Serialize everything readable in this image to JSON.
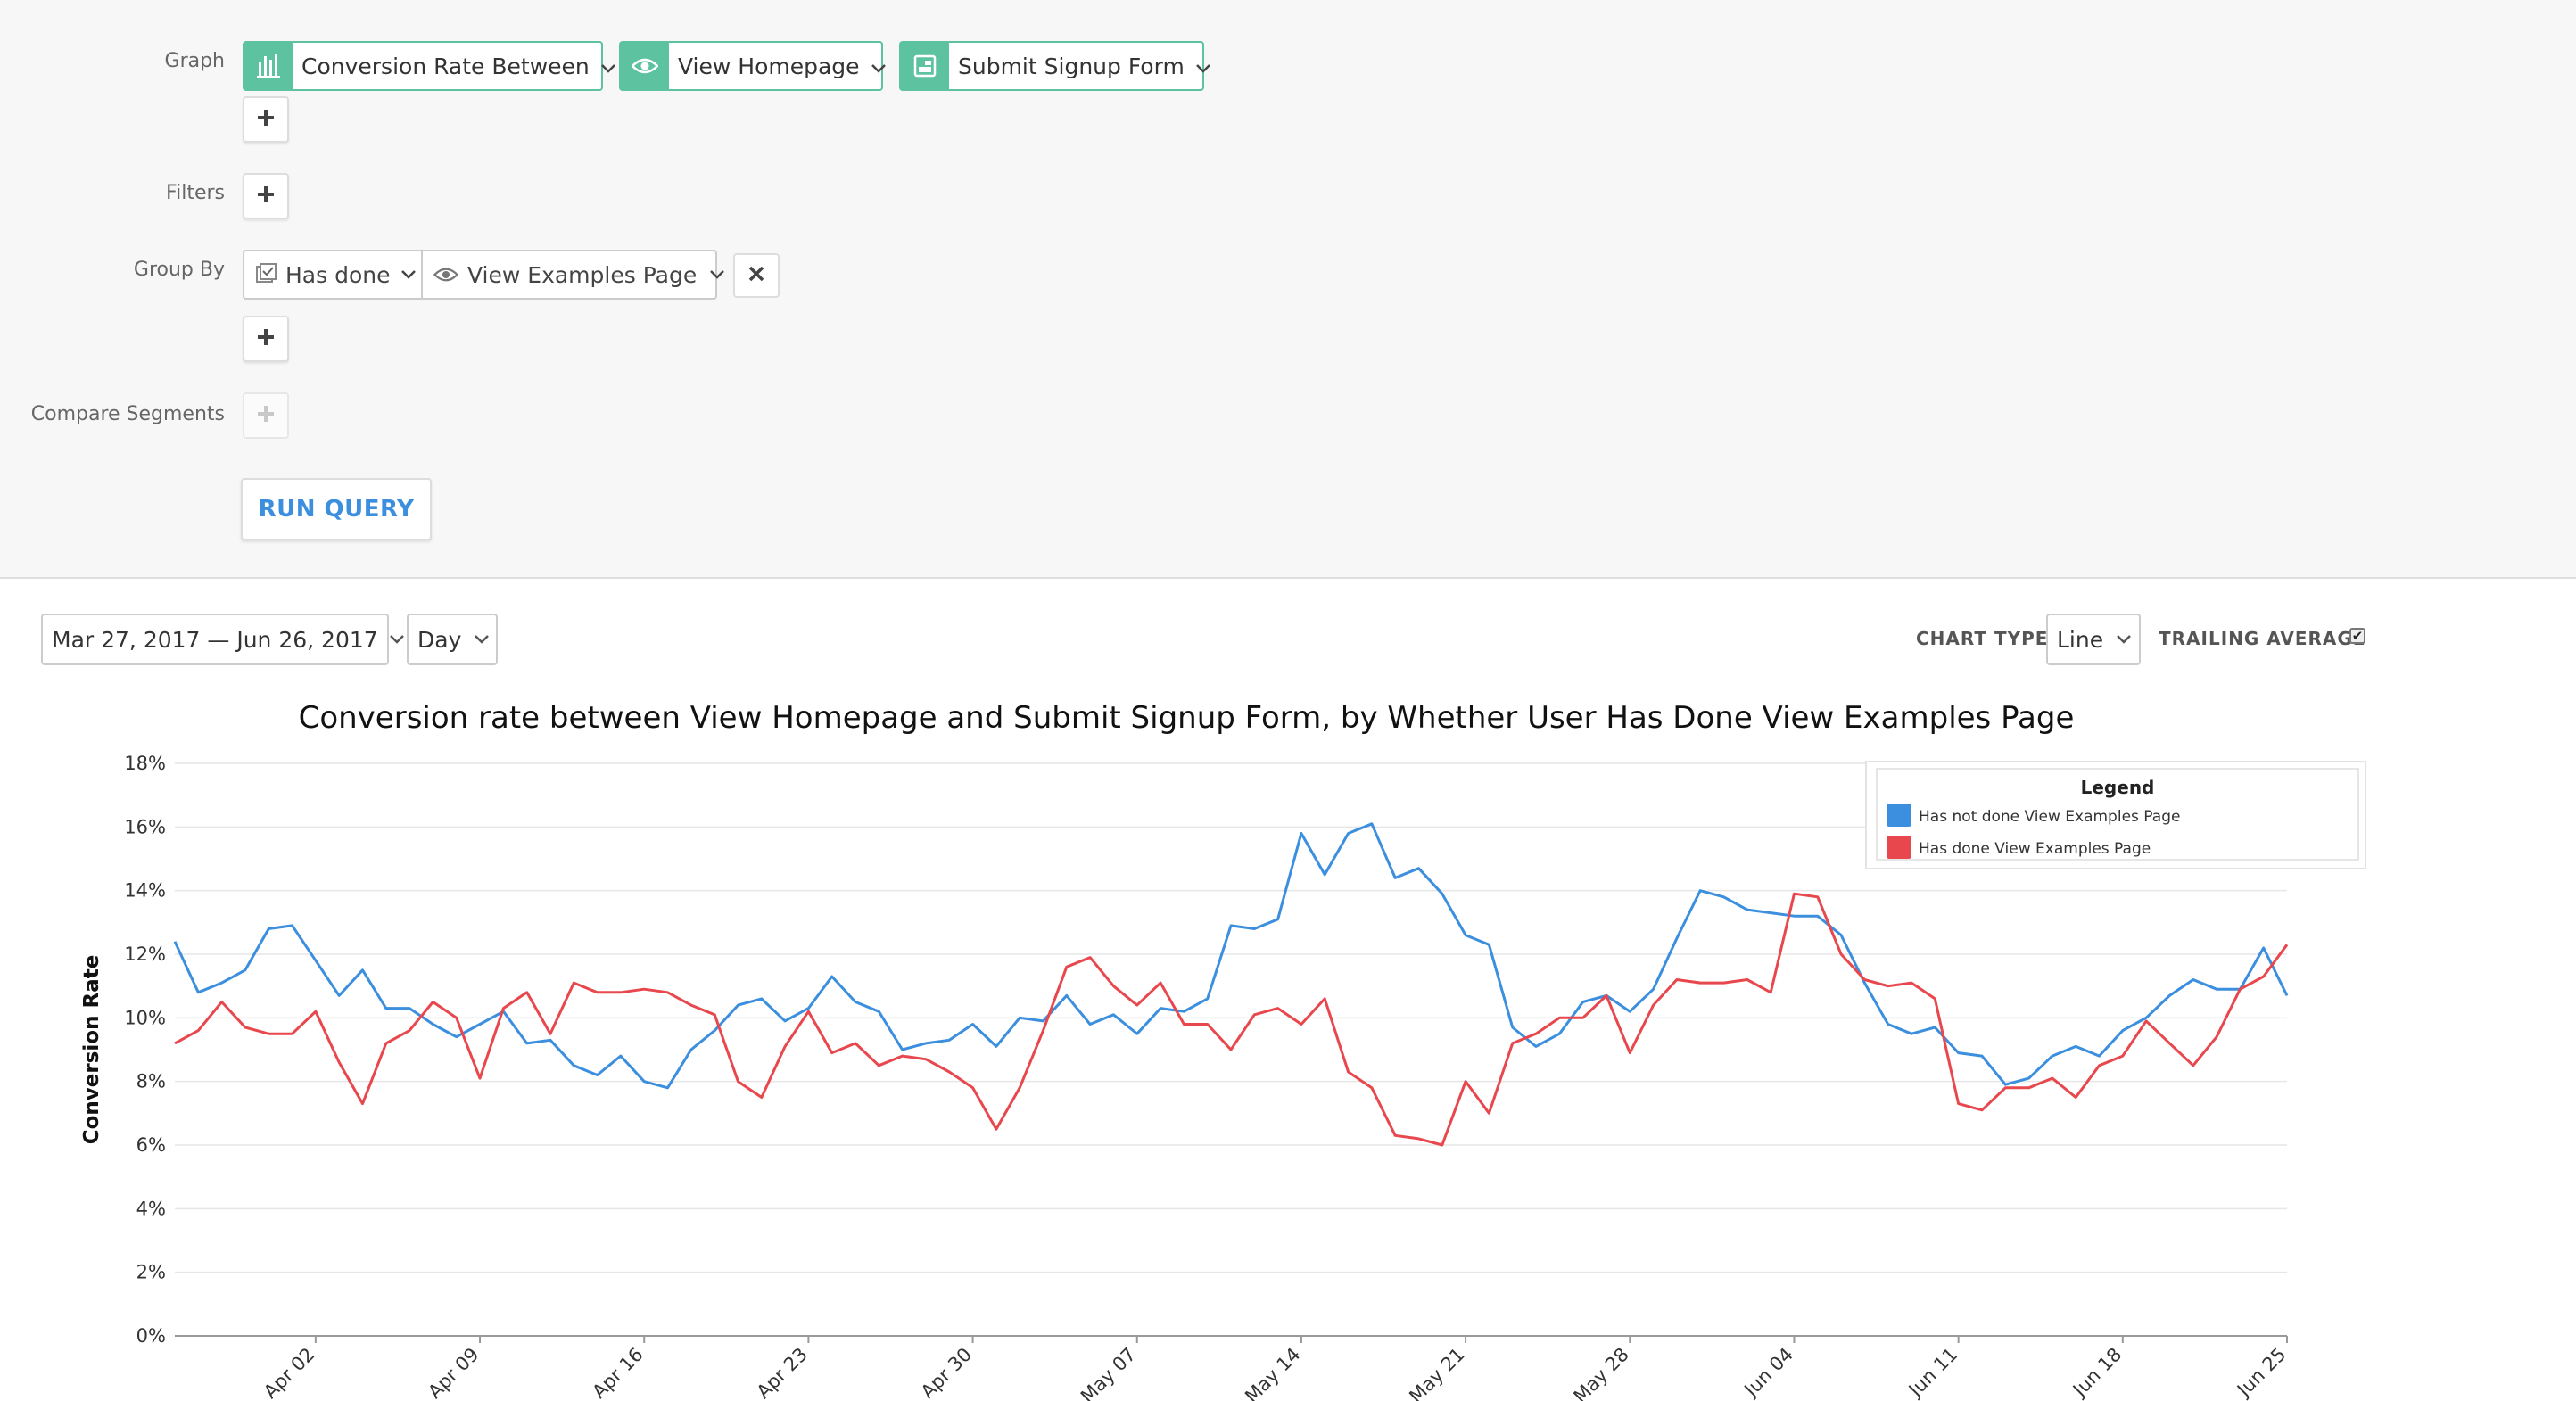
{
  "query": {
    "graph_label": "Graph",
    "metric": {
      "label": "Conversion Rate Between",
      "icon": "bar-chart-icon"
    },
    "event_start": {
      "label": "View Homepage",
      "icon": "eye-icon"
    },
    "event_end": {
      "label": "Submit Signup Form",
      "icon": "signup-form-icon"
    },
    "filters_label": "Filters",
    "group_by_label": "Group By",
    "group_by": {
      "condition": "Has done",
      "event": "View Examples Page"
    },
    "compare_label": "Compare Segments",
    "run_label": "RUN QUERY"
  },
  "controls": {
    "date_range": "Mar 27, 2017 — Jun 26, 2017",
    "interval": "Day",
    "chart_type_label": "CHART TYPE",
    "chart_type": "Line",
    "trailing_label": "TRAILING AVERAGE",
    "trailing_checked": true
  },
  "colors": {
    "accent": "#5cc29f",
    "blue": "#3b8fde",
    "red": "#e8484d"
  },
  "chart_data": {
    "type": "line",
    "title": "Conversion rate between View Homepage and Submit Signup Form, by Whether User Has Done View Examples Page",
    "ylabel": "Conversion Rate",
    "xlabel": "",
    "ylim": [
      0,
      18
    ],
    "yticks": [
      0,
      2,
      4,
      6,
      8,
      10,
      12,
      14,
      16,
      18
    ],
    "ytick_labels": [
      "0%",
      "2%",
      "4%",
      "6%",
      "8%",
      "10%",
      "12%",
      "14%",
      "16%",
      "18%"
    ],
    "xtick_labels": [
      "Apr 02",
      "Apr 09",
      "Apr 16",
      "Apr 23",
      "Apr 30",
      "May 07",
      "May 14",
      "May 21",
      "May 28",
      "Jun 04",
      "Jun 11",
      "Jun 18",
      "Jun 25"
    ],
    "x_start": "Mar 27",
    "x_end": "Jun 26",
    "legend_title": "Legend",
    "legend_position": "top-right",
    "grid": true,
    "series": [
      {
        "name": "Has not done View Examples Page",
        "color": "#3b8fde",
        "values": [
          12.4,
          10.8,
          11.1,
          11.5,
          12.8,
          12.9,
          11.8,
          10.7,
          11.5,
          10.3,
          10.3,
          9.8,
          9.4,
          9.8,
          10.2,
          9.2,
          9.3,
          8.5,
          8.2,
          8.8,
          8.0,
          7.8,
          9.0,
          9.6,
          10.4,
          10.6,
          9.9,
          10.3,
          11.3,
          10.5,
          10.2,
          9.0,
          9.2,
          9.3,
          9.8,
          9.1,
          10.0,
          9.9,
          10.7,
          9.8,
          10.1,
          9.5,
          10.3,
          10.2,
          10.6,
          12.9,
          12.8,
          13.1,
          15.8,
          14.5,
          15.8,
          16.1,
          14.4,
          14.7,
          13.9,
          12.6,
          12.3,
          9.7,
          9.1,
          9.5,
          10.5,
          10.7,
          10.2,
          10.9,
          12.5,
          14.0,
          13.8,
          13.4,
          13.3,
          13.2,
          13.2,
          12.6,
          11.1,
          9.8,
          9.5,
          9.7,
          8.9,
          8.8,
          7.9,
          8.1,
          8.8,
          9.1,
          8.8,
          9.6,
          10.0,
          10.7,
          11.2,
          10.9,
          10.9,
          12.2,
          10.7
        ]
      },
      {
        "name": "Has done View Examples Page",
        "color": "#e8484d",
        "values": [
          9.2,
          9.6,
          10.5,
          9.7,
          9.5,
          9.5,
          10.2,
          8.6,
          7.3,
          9.2,
          9.6,
          10.5,
          10.0,
          8.1,
          10.3,
          10.8,
          9.5,
          11.1,
          10.8,
          10.8,
          10.9,
          10.8,
          10.4,
          10.1,
          8.0,
          7.5,
          9.1,
          10.2,
          8.9,
          9.2,
          8.5,
          8.8,
          8.7,
          8.3,
          7.8,
          6.5,
          7.8,
          9.6,
          11.6,
          11.9,
          11.0,
          10.4,
          11.1,
          9.8,
          9.8,
          9.0,
          10.1,
          10.3,
          9.8,
          10.6,
          8.3,
          7.8,
          6.3,
          6.2,
          6.0,
          8.0,
          7.0,
          9.2,
          9.5,
          10.0,
          10.0,
          10.7,
          8.9,
          10.4,
          11.2,
          11.1,
          11.1,
          11.2,
          10.8,
          13.9,
          13.8,
          12.0,
          11.2,
          11.0,
          11.1,
          10.6,
          7.3,
          7.1,
          7.8,
          7.8,
          8.1,
          7.5,
          8.5,
          8.8,
          9.9,
          9.2,
          8.5,
          9.4,
          10.9,
          11.3,
          12.3
        ]
      }
    ]
  }
}
